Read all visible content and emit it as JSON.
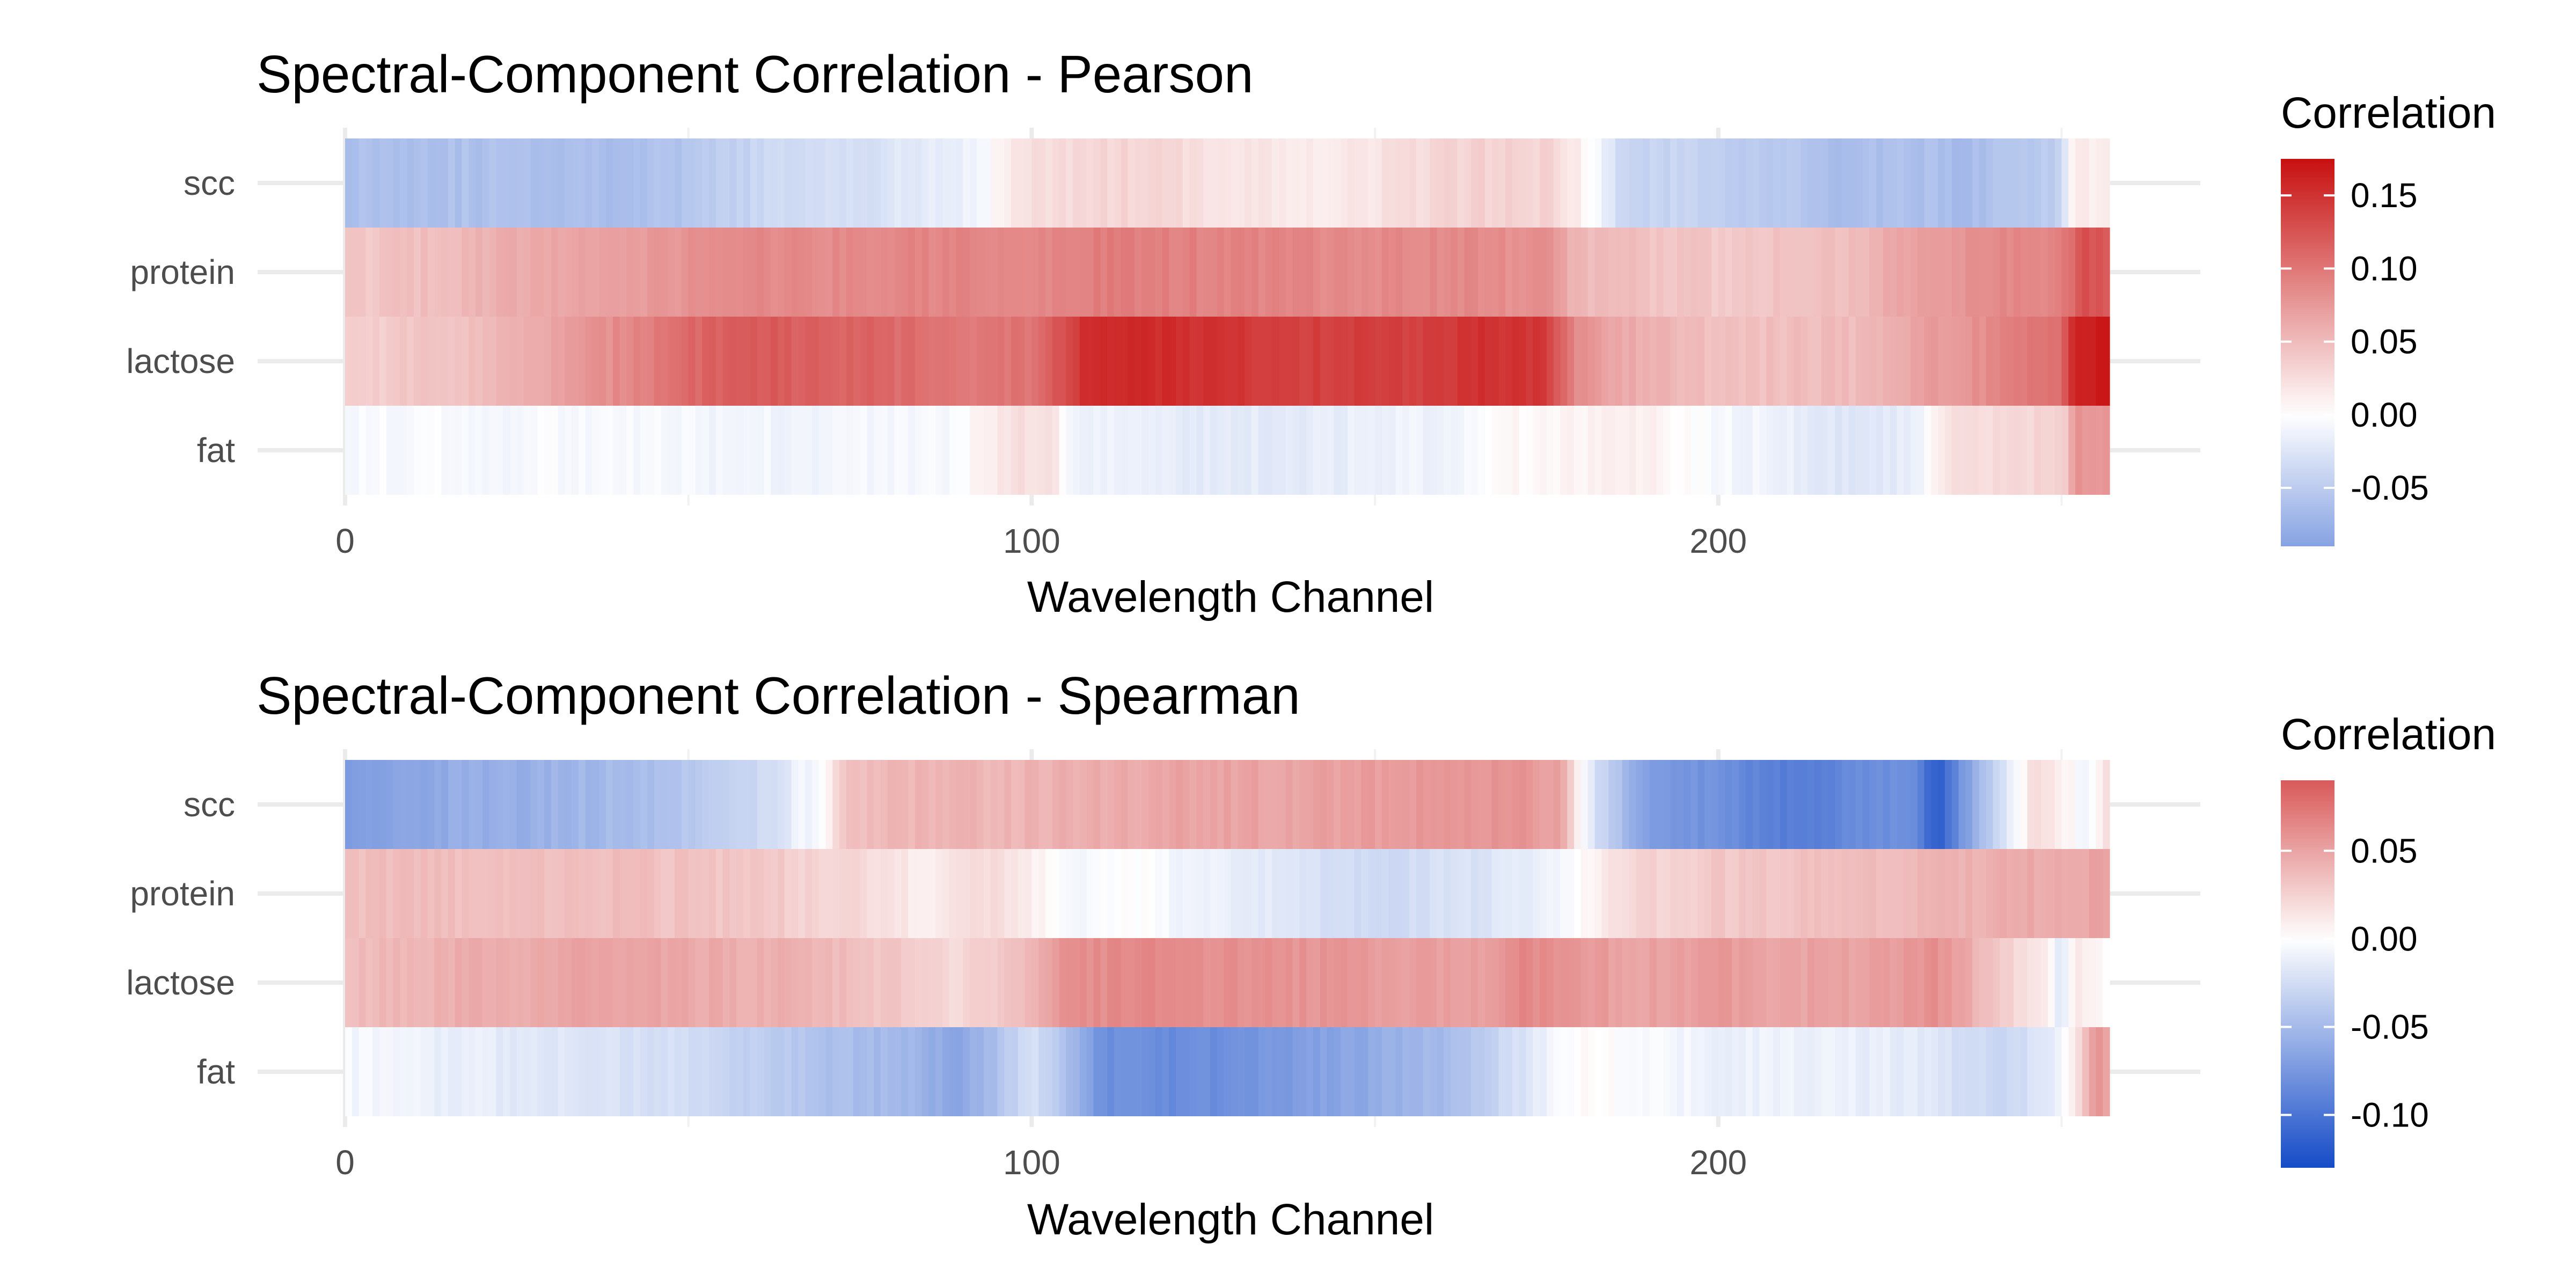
{
  "chart_data": [
    {
      "type": "heatmap",
      "title": "Spectral-Component Correlation - Pearson",
      "xlabel": "Wavelength Channel",
      "ylabel": "",
      "xlim": [
        0,
        257
      ],
      "x_ticks": [
        0,
        100,
        200
      ],
      "rows": [
        "scc",
        "protein",
        "lactose",
        "fat"
      ],
      "legend": {
        "title": "Correlation",
        "position": "right",
        "range": [
          -0.09,
          0.175
        ],
        "ticks": [
          0.15,
          0.1,
          0.05,
          0.0,
          -0.05
        ],
        "tick_labels": [
          "0.15",
          "0.10",
          "0.05",
          "0.00",
          "-0.05"
        ]
      },
      "profiles": {
        "scc": [
          [
            0,
            -0.06
          ],
          [
            20,
            -0.06
          ],
          [
            40,
            -0.062
          ],
          [
            48,
            -0.06
          ],
          [
            60,
            -0.04
          ],
          [
            75,
            -0.03
          ],
          [
            88,
            -0.018
          ],
          [
            93,
            -0.005
          ],
          [
            97,
            0.02
          ],
          [
            108,
            0.03
          ],
          [
            118,
            0.03
          ],
          [
            130,
            0.02
          ],
          [
            140,
            0.015
          ],
          [
            150,
            0.02
          ],
          [
            160,
            0.03
          ],
          [
            170,
            0.035
          ],
          [
            176,
            0.03
          ],
          [
            180,
            0.01
          ],
          [
            182,
            -0.005
          ],
          [
            186,
            -0.04
          ],
          [
            200,
            -0.045
          ],
          [
            210,
            -0.055
          ],
          [
            218,
            -0.065
          ],
          [
            228,
            -0.06
          ],
          [
            236,
            -0.065
          ],
          [
            244,
            -0.055
          ],
          [
            250,
            -0.045
          ],
          [
            251,
            0.0
          ],
          [
            252,
            0.02
          ],
          [
            257,
            0.01
          ]
        ],
        "protein": [
          [
            0,
            0.04
          ],
          [
            10,
            0.045
          ],
          [
            25,
            0.06
          ],
          [
            45,
            0.075
          ],
          [
            55,
            0.085
          ],
          [
            70,
            0.085
          ],
          [
            85,
            0.09
          ],
          [
            100,
            0.085
          ],
          [
            110,
            0.095
          ],
          [
            130,
            0.09
          ],
          [
            150,
            0.085
          ],
          [
            165,
            0.085
          ],
          [
            175,
            0.08
          ],
          [
            180,
            0.05
          ],
          [
            190,
            0.045
          ],
          [
            200,
            0.04
          ],
          [
            210,
            0.045
          ],
          [
            220,
            0.05
          ],
          [
            230,
            0.07
          ],
          [
            240,
            0.085
          ],
          [
            250,
            0.09
          ],
          [
            253,
            0.13
          ],
          [
            257,
            0.12
          ]
        ],
        "lactose": [
          [
            0,
            0.035
          ],
          [
            10,
            0.04
          ],
          [
            25,
            0.055
          ],
          [
            40,
            0.085
          ],
          [
            50,
            0.11
          ],
          [
            60,
            0.12
          ],
          [
            75,
            0.115
          ],
          [
            90,
            0.1
          ],
          [
            100,
            0.1
          ],
          [
            105,
            0.13
          ],
          [
            108,
            0.155
          ],
          [
            120,
            0.155
          ],
          [
            140,
            0.14
          ],
          [
            155,
            0.14
          ],
          [
            165,
            0.15
          ],
          [
            175,
            0.145
          ],
          [
            180,
            0.08
          ],
          [
            190,
            0.055
          ],
          [
            205,
            0.045
          ],
          [
            220,
            0.05
          ],
          [
            230,
            0.07
          ],
          [
            240,
            0.085
          ],
          [
            250,
            0.11
          ],
          [
            252,
            0.16
          ],
          [
            257,
            0.17
          ]
        ],
        "fat": [
          [
            0,
            -0.005
          ],
          [
            10,
            -0.004
          ],
          [
            30,
            -0.006
          ],
          [
            45,
            -0.008
          ],
          [
            60,
            -0.01
          ],
          [
            75,
            -0.008
          ],
          [
            88,
            -0.005
          ],
          [
            93,
            0.01
          ],
          [
            98,
            0.025
          ],
          [
            103,
            0.02
          ],
          [
            106,
            -0.01
          ],
          [
            115,
            -0.018
          ],
          [
            130,
            -0.02
          ],
          [
            145,
            -0.018
          ],
          [
            160,
            -0.01
          ],
          [
            170,
            0.005
          ],
          [
            180,
            0.01
          ],
          [
            190,
            0.01
          ],
          [
            200,
            -0.005
          ],
          [
            210,
            -0.015
          ],
          [
            220,
            -0.025
          ],
          [
            228,
            -0.02
          ],
          [
            233,
            0.02
          ],
          [
            242,
            0.03
          ],
          [
            250,
            0.03
          ],
          [
            252,
            0.08
          ],
          [
            257,
            0.075
          ]
        ]
      }
    },
    {
      "type": "heatmap",
      "title": "Spectral-Component Correlation - Spearman",
      "xlabel": "Wavelength Channel",
      "ylabel": "",
      "xlim": [
        0,
        257
      ],
      "x_ticks": [
        0,
        100,
        200
      ],
      "rows": [
        "scc",
        "protein",
        "lactose",
        "fat"
      ],
      "legend": {
        "title": "Correlation",
        "position": "right",
        "range": [
          -0.13,
          0.09
        ],
        "ticks": [
          0.05,
          0.0,
          -0.05,
          -0.1
        ],
        "tick_labels": [
          "0.05",
          "0.00",
          "-0.05",
          "-0.10"
        ]
      },
      "profiles": {
        "scc": [
          [
            0,
            -0.07
          ],
          [
            15,
            -0.06
          ],
          [
            30,
            -0.055
          ],
          [
            45,
            -0.045
          ],
          [
            60,
            -0.03
          ],
          [
            66,
            -0.01
          ],
          [
            70,
            0.0
          ],
          [
            72,
            0.03
          ],
          [
            78,
            0.04
          ],
          [
            95,
            0.04
          ],
          [
            110,
            0.045
          ],
          [
            125,
            0.05
          ],
          [
            140,
            0.05
          ],
          [
            155,
            0.055
          ],
          [
            170,
            0.06
          ],
          [
            177,
            0.05
          ],
          [
            180,
            0.0
          ],
          [
            183,
            -0.03
          ],
          [
            190,
            -0.07
          ],
          [
            200,
            -0.08
          ],
          [
            210,
            -0.095
          ],
          [
            220,
            -0.085
          ],
          [
            228,
            -0.08
          ],
          [
            232,
            -0.12
          ],
          [
            236,
            -0.07
          ],
          [
            242,
            -0.02
          ],
          [
            246,
            0.02
          ],
          [
            250,
            0.01
          ],
          [
            254,
            -0.01
          ],
          [
            257,
            0.02
          ]
        ],
        "protein": [
          [
            0,
            0.035
          ],
          [
            20,
            0.035
          ],
          [
            40,
            0.035
          ],
          [
            60,
            0.03
          ],
          [
            75,
            0.02
          ],
          [
            85,
            0.01
          ],
          [
            95,
            0.02
          ],
          [
            100,
            0.01
          ],
          [
            105,
            -0.005
          ],
          [
            115,
            0.0
          ],
          [
            125,
            -0.01
          ],
          [
            135,
            -0.015
          ],
          [
            145,
            -0.025
          ],
          [
            155,
            -0.025
          ],
          [
            165,
            -0.02
          ],
          [
            175,
            -0.01
          ],
          [
            180,
            0.0
          ],
          [
            185,
            0.02
          ],
          [
            200,
            0.03
          ],
          [
            215,
            0.035
          ],
          [
            230,
            0.04
          ],
          [
            245,
            0.045
          ],
          [
            257,
            0.05
          ]
        ],
        "lactose": [
          [
            0,
            0.035
          ],
          [
            20,
            0.045
          ],
          [
            40,
            0.05
          ],
          [
            55,
            0.045
          ],
          [
            70,
            0.04
          ],
          [
            80,
            0.03
          ],
          [
            88,
            0.02
          ],
          [
            95,
            0.03
          ],
          [
            100,
            0.04
          ],
          [
            105,
            0.06
          ],
          [
            115,
            0.065
          ],
          [
            130,
            0.06
          ],
          [
            150,
            0.055
          ],
          [
            165,
            0.05
          ],
          [
            172,
            0.065
          ],
          [
            180,
            0.055
          ],
          [
            190,
            0.05
          ],
          [
            200,
            0.055
          ],
          [
            210,
            0.05
          ],
          [
            220,
            0.05
          ],
          [
            232,
            0.06
          ],
          [
            238,
            0.04
          ],
          [
            244,
            0.02
          ],
          [
            248,
            0.01
          ],
          [
            250,
            -0.02
          ],
          [
            252,
            0.015
          ],
          [
            257,
            0.0
          ]
        ],
        "fat": [
          [
            0,
            -0.005
          ],
          [
            10,
            -0.01
          ],
          [
            25,
            -0.015
          ],
          [
            40,
            -0.02
          ],
          [
            55,
            -0.03
          ],
          [
            70,
            -0.045
          ],
          [
            80,
            -0.05
          ],
          [
            90,
            -0.065
          ],
          [
            96,
            -0.04
          ],
          [
            100,
            -0.02
          ],
          [
            104,
            -0.04
          ],
          [
            110,
            -0.08
          ],
          [
            120,
            -0.085
          ],
          [
            135,
            -0.075
          ],
          [
            150,
            -0.06
          ],
          [
            160,
            -0.05
          ],
          [
            168,
            -0.03
          ],
          [
            175,
            -0.01
          ],
          [
            180,
            0.005
          ],
          [
            190,
            -0.005
          ],
          [
            200,
            -0.01
          ],
          [
            215,
            -0.01
          ],
          [
            230,
            -0.015
          ],
          [
            240,
            -0.03
          ],
          [
            248,
            -0.02
          ],
          [
            252,
            0.01
          ],
          [
            255,
            0.06
          ],
          [
            257,
            0.05
          ]
        ]
      }
    }
  ]
}
